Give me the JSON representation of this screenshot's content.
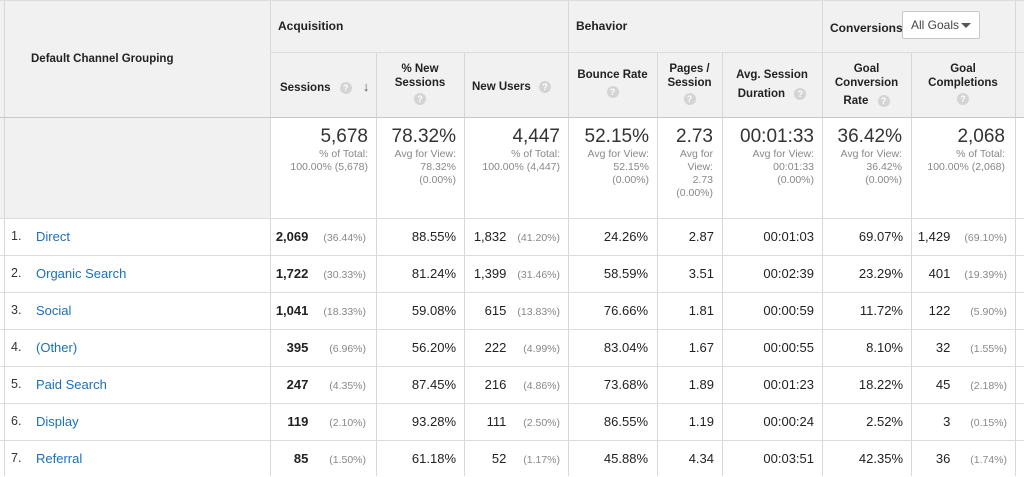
{
  "header": {
    "dimension_label": "Default Channel Grouping",
    "groups": {
      "acquisition": "Acquisition",
      "behavior": "Behavior",
      "conversions": "Conversions"
    },
    "goals_select": "All Goals",
    "columns": {
      "sessions": "Sessions",
      "new_sessions_1": "% New",
      "new_sessions_2": "Sessions",
      "new_users": "New Users",
      "bounce_rate": "Bounce Rate",
      "pages_1": "Pages /",
      "pages_2": "Session",
      "duration_1": "Avg. Session",
      "duration_2": "Duration",
      "goal_conv_1": "Goal",
      "goal_conv_2": "Conversion",
      "goal_conv_3": "Rate",
      "goal_comp_1": "Goal",
      "goal_comp_2": "Completions"
    },
    "help_glyph": "?",
    "sort_glyph": "↓"
  },
  "totals": {
    "sessions": {
      "value": "5,678",
      "l1": "% of Total:",
      "l2": "100.00% (5,678)"
    },
    "new_sessions": {
      "value": "78.32%",
      "l1": "Avg for View:",
      "l2": "78.32%",
      "l3": "(0.00%)"
    },
    "new_users": {
      "value": "4,447",
      "l1": "% of Total:",
      "l2": "100.00% (4,447)"
    },
    "bounce_rate": {
      "value": "52.15%",
      "l1": "Avg for View:",
      "l2": "52.15%",
      "l3": "(0.00%)"
    },
    "pages": {
      "value": "2.73",
      "l1": "Avg for",
      "l2": "View:",
      "l3": "2.73",
      "l4": "(0.00%)"
    },
    "duration": {
      "value": "00:01:33",
      "l1": "Avg for View:",
      "l2": "00:01:33",
      "l3": "(0.00%)"
    },
    "goal_conv": {
      "value": "36.42%",
      "l1": "Avg for View:",
      "l2": "36.42%",
      "l3": "(0.00%)"
    },
    "goal_comp": {
      "value": "2,068",
      "l1": "% of Total:",
      "l2": "100.00% (2,068)"
    }
  },
  "rows": [
    {
      "num": "1.",
      "channel": "Direct",
      "sessions": "2,069",
      "sessions_pct": "(36.44%)",
      "new_sessions": "88.55%",
      "new_users": "1,832",
      "new_users_pct": "(41.20%)",
      "bounce": "24.26%",
      "pages": "2.87",
      "duration": "00:01:03",
      "conv": "69.07%",
      "comp": "1,429",
      "comp_pct": "(69.10%)"
    },
    {
      "num": "2.",
      "channel": "Organic Search",
      "sessions": "1,722",
      "sessions_pct": "(30.33%)",
      "new_sessions": "81.24%",
      "new_users": "1,399",
      "new_users_pct": "(31.46%)",
      "bounce": "58.59%",
      "pages": "3.51",
      "duration": "00:02:39",
      "conv": "23.29%",
      "comp": "401",
      "comp_pct": "(19.39%)"
    },
    {
      "num": "3.",
      "channel": "Social",
      "sessions": "1,041",
      "sessions_pct": "(18.33%)",
      "new_sessions": "59.08%",
      "new_users": "615",
      "new_users_pct": "(13.83%)",
      "bounce": "76.66%",
      "pages": "1.81",
      "duration": "00:00:59",
      "conv": "11.72%",
      "comp": "122",
      "comp_pct": "(5.90%)"
    },
    {
      "num": "4.",
      "channel": "(Other)",
      "sessions": "395",
      "sessions_pct": "(6.96%)",
      "new_sessions": "56.20%",
      "new_users": "222",
      "new_users_pct": "(4.99%)",
      "bounce": "83.04%",
      "pages": "1.67",
      "duration": "00:00:55",
      "conv": "8.10%",
      "comp": "32",
      "comp_pct": "(1.55%)"
    },
    {
      "num": "5.",
      "channel": "Paid Search",
      "sessions": "247",
      "sessions_pct": "(4.35%)",
      "new_sessions": "87.45%",
      "new_users": "216",
      "new_users_pct": "(4.86%)",
      "bounce": "73.68%",
      "pages": "1.89",
      "duration": "00:01:23",
      "conv": "18.22%",
      "comp": "45",
      "comp_pct": "(2.18%)"
    },
    {
      "num": "6.",
      "channel": "Display",
      "sessions": "119",
      "sessions_pct": "(2.10%)",
      "new_sessions": "93.28%",
      "new_users": "111",
      "new_users_pct": "(2.50%)",
      "bounce": "86.55%",
      "pages": "1.19",
      "duration": "00:00:24",
      "conv": "2.52%",
      "comp": "3",
      "comp_pct": "(0.15%)"
    },
    {
      "num": "7.",
      "channel": "Referral",
      "sessions": "85",
      "sessions_pct": "(1.50%)",
      "new_sessions": "61.18%",
      "new_users": "52",
      "new_users_pct": "(1.17%)",
      "bounce": "45.88%",
      "pages": "4.34",
      "duration": "00:03:51",
      "conv": "42.35%",
      "comp": "36",
      "comp_pct": "(1.74%)"
    }
  ],
  "colors": {
    "header_bg": "#f1f1f1",
    "link": "#1a6fbf",
    "grid": "#d8d8d8"
  }
}
